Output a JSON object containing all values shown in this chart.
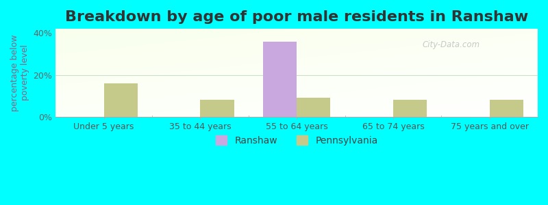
{
  "title": "Breakdown by age of poor male residents in Ranshaw",
  "ylabel": "percentage below\npoverty level",
  "categories": [
    "Under 5 years",
    "35 to 44 years",
    "55 to 64 years",
    "65 to 74 years",
    "75 years and over"
  ],
  "ranshaw_values": [
    0,
    0,
    36,
    0,
    0
  ],
  "pennsylvania_values": [
    16,
    8,
    9,
    8,
    8
  ],
  "ranshaw_color": "#c9a8e0",
  "pennsylvania_color": "#c5c98a",
  "outer_bg": "#00ffff",
  "plot_bg_topleft": "#e8f5e8",
  "plot_bg_bottomright": "#f8fff8",
  "ylim": [
    0,
    42
  ],
  "yticks": [
    0,
    20,
    40
  ],
  "ytick_labels": [
    "0%",
    "20%",
    "40%"
  ],
  "bar_width": 0.35,
  "title_fontsize": 16,
  "axis_label_fontsize": 9,
  "tick_fontsize": 9,
  "legend_fontsize": 10,
  "watermark": "City-Data.com"
}
